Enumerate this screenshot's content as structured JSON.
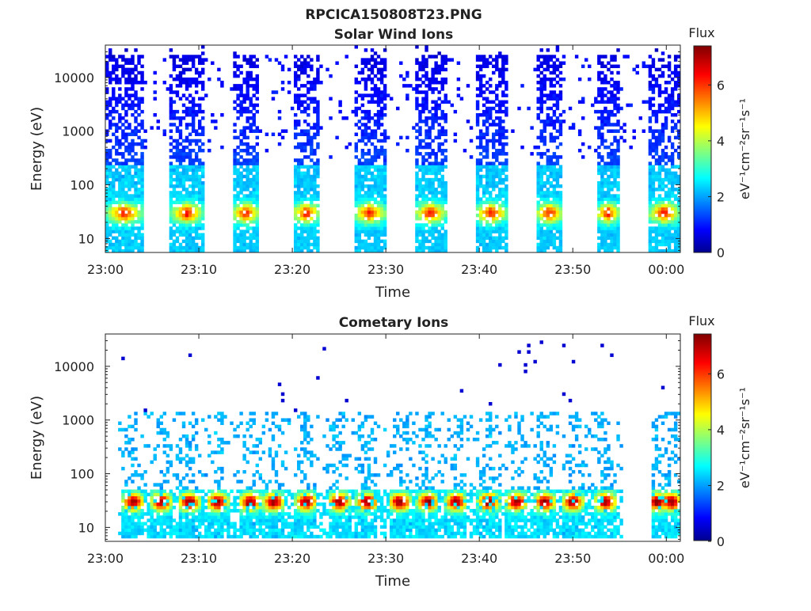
{
  "figure_title": "RPCICA150808T23.PNG",
  "colorbar": {
    "title": "Flux",
    "label": "eV⁻¹cm⁻²sr⁻¹s⁻¹",
    "min": 0,
    "max": 7.4,
    "ticks": [
      "0",
      "2",
      "4",
      "6"
    ]
  },
  "chart_data": [
    {
      "type": "heatmap",
      "title": "Solar Wind Ions",
      "xlabel": "Time",
      "ylabel": "Energy (eV)",
      "xticks": [
        "23:00",
        "23:10",
        "23:20",
        "23:30",
        "23:40",
        "23:50",
        "00:00"
      ],
      "yticks": [
        "10",
        "100",
        "1000",
        "10000"
      ],
      "xlim_minutes": [
        0,
        61.5
      ],
      "ylim": [
        5.5,
        40000
      ],
      "yscale": "log",
      "bursts_minutes": [
        [
          0,
          4
        ],
        [
          7,
          10.5
        ],
        [
          13.5,
          16.5
        ],
        [
          20,
          23
        ],
        [
          26.5,
          30
        ],
        [
          33,
          36.5
        ],
        [
          39.5,
          43
        ],
        [
          46,
          49
        ],
        [
          52.5,
          55
        ],
        [
          58,
          61.5
        ]
      ],
      "peak": {
        "energy_eV": 30,
        "max_flux": 6.5
      }
    },
    {
      "type": "heatmap",
      "title": "Cometary Ions",
      "xlabel": "Time",
      "ylabel": "Energy (eV)",
      "xticks": [
        "23:00",
        "23:10",
        "23:20",
        "23:30",
        "23:40",
        "23:50",
        "00:00"
      ],
      "yticks": [
        "10",
        "100",
        "1000",
        "10000"
      ],
      "xlim_minutes": [
        0,
        61.5
      ],
      "ylim": [
        5.5,
        40000
      ],
      "yscale": "log",
      "peaks_minutes": [
        3,
        6,
        9,
        12,
        15.5,
        18,
        21.5,
        25,
        28,
        31.5,
        34.5,
        37.5,
        41,
        44,
        47,
        50,
        53.5,
        59,
        60.5
      ],
      "peak": {
        "energy_eV": 30,
        "max_flux": 7.3
      }
    }
  ]
}
